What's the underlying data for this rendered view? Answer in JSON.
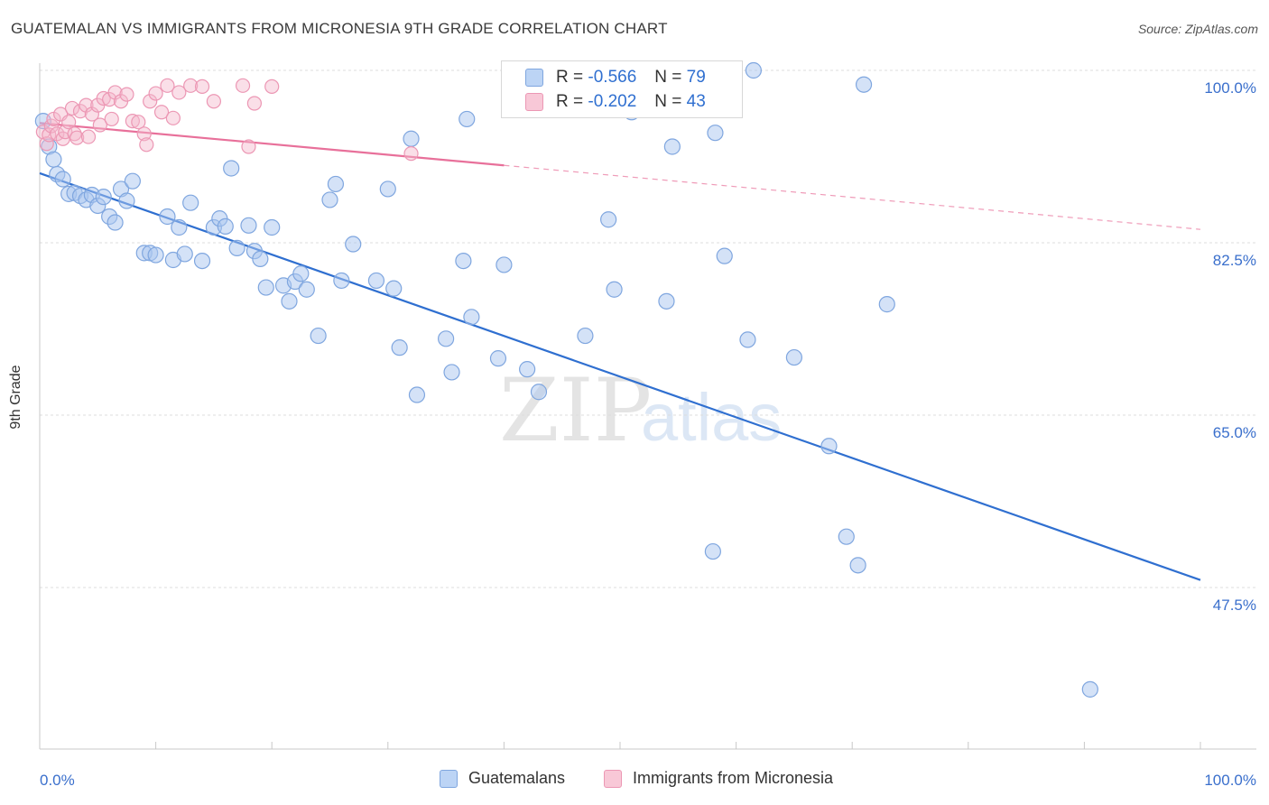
{
  "title": "GUATEMALAN VS IMMIGRANTS FROM MICRONESIA 9TH GRADE CORRELATION CHART",
  "source": "Source: ZipAtlas.com",
  "watermark": {
    "zip": "ZIP",
    "atlas": "atlas"
  },
  "legend_top": {
    "rows": [
      {
        "r_label": "R =",
        "r_value": "-0.566",
        "n_label": "N =",
        "n_value": "79"
      },
      {
        "r_label": "R =",
        "r_value": "-0.202",
        "n_label": "N =",
        "n_value": "43"
      }
    ]
  },
  "colors": {
    "blue": "#2f6fd0",
    "blue_fill": "#a9c6ef",
    "blue_stroke": "#7fa6df",
    "pink": "#e8709a",
    "pink_fill": "#f5b8cb",
    "pink_stroke": "#ec97b4",
    "grid": "#dddddd",
    "tick_label": "#3a6fcc"
  },
  "chart_data": {
    "type": "scatter",
    "title": "GUATEMALAN VS IMMIGRANTS FROM MICRONESIA 9TH GRADE CORRELATION CHART",
    "xlabel": "",
    "ylabel": "9th Grade",
    "xlim": [
      0,
      100
    ],
    "ylim": [
      30.5,
      102
    ],
    "x_tick_labels": [
      "0.0%",
      "100.0%"
    ],
    "y_ticks": [
      100.0,
      82.5,
      65.0,
      47.5
    ],
    "y_tick_labels": [
      "100.0%",
      "82.5%",
      "65.0%",
      "47.5%"
    ],
    "grid": true,
    "legend_position": "bottom",
    "series": [
      {
        "name": "Guatemalans",
        "R": -0.566,
        "N": 79,
        "trend": {
          "x": [
            0,
            100
          ],
          "y": [
            91.3,
            50.0
          ]
        },
        "points": [
          [
            0.3,
            96.6
          ],
          [
            0.8,
            94
          ],
          [
            1.2,
            92.7
          ],
          [
            1.5,
            91.2
          ],
          [
            2,
            90.7
          ],
          [
            2.5,
            89.2
          ],
          [
            3,
            89.3
          ],
          [
            3.5,
            89
          ],
          [
            4,
            88.6
          ],
          [
            4.5,
            89.1
          ],
          [
            5,
            88
          ],
          [
            5.5,
            88.9
          ],
          [
            6,
            86.9
          ],
          [
            6.5,
            86.3
          ],
          [
            7,
            89.7
          ],
          [
            7.5,
            88.5
          ],
          [
            8,
            90.5
          ],
          [
            9,
            83.2
          ],
          [
            9.5,
            83.2
          ],
          [
            10,
            83
          ],
          [
            11,
            86.9
          ],
          [
            11.5,
            82.5
          ],
          [
            12,
            85.8
          ],
          [
            12.5,
            83.1
          ],
          [
            13,
            88.3
          ],
          [
            14,
            82.4
          ],
          [
            15,
            85.8
          ],
          [
            15.5,
            86.7
          ],
          [
            16,
            85.9
          ],
          [
            16.5,
            91.8
          ],
          [
            17,
            83.7
          ],
          [
            18,
            86
          ],
          [
            18.5,
            83.4
          ],
          [
            19,
            82.6
          ],
          [
            19.5,
            79.7
          ],
          [
            20,
            85.8
          ],
          [
            21,
            79.9
          ],
          [
            21.5,
            78.3
          ],
          [
            22,
            80.3
          ],
          [
            22.5,
            81.1
          ],
          [
            23,
            79.5
          ],
          [
            24,
            74.8
          ],
          [
            25,
            88.6
          ],
          [
            25.5,
            90.2
          ],
          [
            26,
            80.4
          ],
          [
            27,
            84.1
          ],
          [
            29,
            80.4
          ],
          [
            30,
            89.7
          ],
          [
            30.5,
            79.6
          ],
          [
            31,
            73.6
          ],
          [
            32,
            94.8
          ],
          [
            32.5,
            68.8
          ],
          [
            35,
            74.5
          ],
          [
            35.5,
            71.1
          ],
          [
            36.5,
            82.4
          ],
          [
            36.8,
            96.8
          ],
          [
            37.2,
            76.7
          ],
          [
            39.5,
            72.5
          ],
          [
            40,
            82
          ],
          [
            42,
            71.4
          ],
          [
            43,
            69.1
          ],
          [
            47,
            74.8
          ],
          [
            49,
            86.6
          ],
          [
            49.5,
            79.5
          ],
          [
            51,
            97.5
          ],
          [
            54,
            78.3
          ],
          [
            54.5,
            94
          ],
          [
            58,
            52.9
          ],
          [
            58.2,
            95.4
          ],
          [
            59,
            82.9
          ],
          [
            61,
            74.4
          ],
          [
            65,
            72.6
          ],
          [
            68,
            63.6
          ],
          [
            69.5,
            54.4
          ],
          [
            70.5,
            51.5
          ],
          [
            73,
            78
          ],
          [
            90.5,
            38.9
          ],
          [
            61.5,
            102
          ],
          [
            71,
            100.3
          ]
        ]
      },
      {
        "name": "Immigrants from Micronesia",
        "R": -0.202,
        "N": 43,
        "trend": {
          "x": [
            0,
            40
          ],
          "y": [
            96.4,
            92.1
          ],
          "dashed_to": {
            "x": 100,
            "y": 85.6
          }
        },
        "points": [
          [
            0.3,
            95.5
          ],
          [
            0.6,
            94.3
          ],
          [
            0.8,
            95.2
          ],
          [
            1,
            96.1
          ],
          [
            1.2,
            96.8
          ],
          [
            1.5,
            95.3
          ],
          [
            1.8,
            97.3
          ],
          [
            2,
            94.8
          ],
          [
            2.2,
            95.5
          ],
          [
            2.5,
            96.5
          ],
          [
            2.8,
            97.9
          ],
          [
            3,
            95.3
          ],
          [
            3.2,
            94.9
          ],
          [
            3.5,
            97.6
          ],
          [
            4,
            98.2
          ],
          [
            4.2,
            95
          ],
          [
            4.5,
            97.3
          ],
          [
            5,
            98.2
          ],
          [
            5.2,
            96.2
          ],
          [
            5.5,
            98.9
          ],
          [
            6,
            98.8
          ],
          [
            6.2,
            96.8
          ],
          [
            6.5,
            99.5
          ],
          [
            7,
            98.6
          ],
          [
            7.5,
            99.3
          ],
          [
            8,
            96.6
          ],
          [
            8.5,
            96.5
          ],
          [
            9,
            95.3
          ],
          [
            9.2,
            94.2
          ],
          [
            9.5,
            98.6
          ],
          [
            10,
            99.4
          ],
          [
            10.5,
            97.5
          ],
          [
            11,
            100.2
          ],
          [
            11.5,
            96.9
          ],
          [
            12,
            99.5
          ],
          [
            13,
            100.2
          ],
          [
            14,
            100.1
          ],
          [
            15,
            98.6
          ],
          [
            17.5,
            100.2
          ],
          [
            18,
            94
          ],
          [
            18.5,
            98.4
          ],
          [
            20,
            100.1
          ],
          [
            32,
            93.3
          ]
        ]
      }
    ]
  },
  "legend_bottom": [
    {
      "label": "Guatemalans"
    },
    {
      "label": "Immigrants from Micronesia"
    }
  ]
}
